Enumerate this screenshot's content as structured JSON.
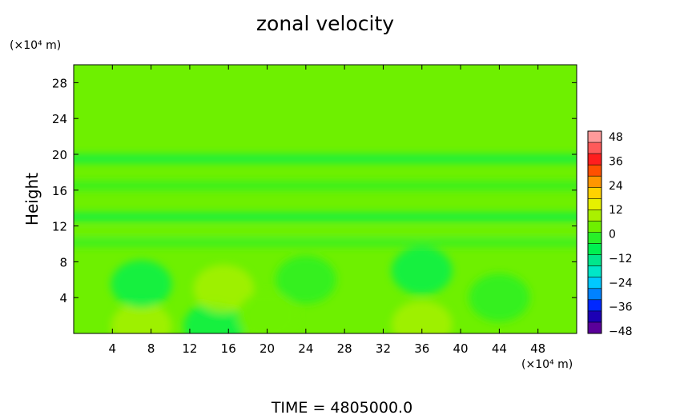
{
  "chart_data": {
    "type": "heatmap",
    "title": "zonal velocity",
    "ylabel": "Height",
    "y_unit": "(×10⁴ m)",
    "x_unit": "(×10⁴ m)",
    "footer": "TIME  =  4805000.0",
    "xlim": [
      0,
      52
    ],
    "ylim": [
      0,
      30
    ],
    "x_ticks": [
      4,
      8,
      12,
      16,
      20,
      24,
      28,
      32,
      36,
      40,
      44,
      48
    ],
    "y_ticks": [
      4,
      8,
      12,
      16,
      20,
      24,
      28
    ],
    "colorbar": {
      "ticks": [
        48,
        36,
        24,
        12,
        0,
        -12,
        -24,
        -36,
        -48
      ],
      "range": [
        -48,
        48
      ],
      "colors": [
        "#5a009a",
        "#1c00b4",
        "#0028ff",
        "#0082ff",
        "#00c8ff",
        "#00e6c8",
        "#00e68c",
        "#00f050",
        "#28f028",
        "#6ef000",
        "#aaf000",
        "#e6f000",
        "#ffd200",
        "#ff9600",
        "#ff5000",
        "#ff1e1e",
        "#ff5a5a",
        "#ff9a9a"
      ]
    },
    "background_value": 1,
    "bands": [
      {
        "y": 19.5,
        "value": -6
      },
      {
        "y": 16.5,
        "value": -5
      },
      {
        "y": 13,
        "value": -6
      },
      {
        "y": 11.2,
        "value": 4
      },
      {
        "y": 10.2,
        "value": -2
      }
    ],
    "blobs": [
      {
        "x": 7,
        "y": 0.8,
        "value": 10
      },
      {
        "x": 14.5,
        "y": 0.8,
        "value": -9
      },
      {
        "x": 36,
        "y": 1,
        "value": 7
      },
      {
        "x": 7,
        "y": 5.5,
        "value": -7
      },
      {
        "x": 15.5,
        "y": 5,
        "value": 7
      },
      {
        "x": 36,
        "y": 7,
        "value": -6
      },
      {
        "x": 24,
        "y": 6,
        "value": -3
      },
      {
        "x": 44,
        "y": 4,
        "value": -3
      },
      {
        "x": 20,
        "y": 2,
        "value": 4
      }
    ]
  }
}
